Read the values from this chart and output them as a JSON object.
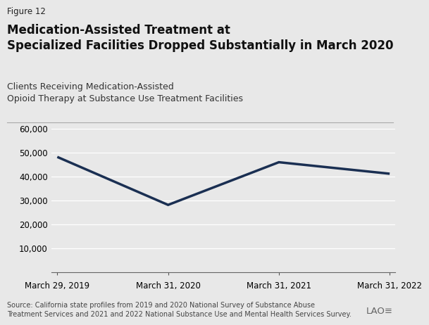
{
  "figure_label": "Figure 12",
  "title_bold": "Medication-Assisted Treatment at\nSpecialized Facilities Dropped Substantially in March 2020",
  "subtitle": "Clients Receiving Medication-Assisted\nOpioid Therapy at Substance Use Treatment Facilities",
  "x_labels": [
    "March 29, 2019",
    "March 31, 2020",
    "March 31, 2021",
    "March 31, 2022"
  ],
  "x_values": [
    0,
    1,
    2,
    3
  ],
  "y_values": [
    48200,
    28200,
    46000,
    41200
  ],
  "line_color": "#1a2f52",
  "line_width": 2.5,
  "ylim": [
    0,
    60000
  ],
  "yticks": [
    10000,
    20000,
    30000,
    40000,
    50000,
    60000
  ],
  "background_color": "#e8e8e8",
  "grid_color": "#ffffff",
  "source_text": "Source: California state profiles from 2019 and 2020 National Survey of Substance Abuse\nTreatment Services and 2021 and 2022 National Substance Use and Mental Health Services Survey.",
  "figure_label_fontsize": 8.5,
  "title_fontsize": 12.0,
  "subtitle_fontsize": 9.0,
  "tick_fontsize": 8.5,
  "source_fontsize": 7.0
}
